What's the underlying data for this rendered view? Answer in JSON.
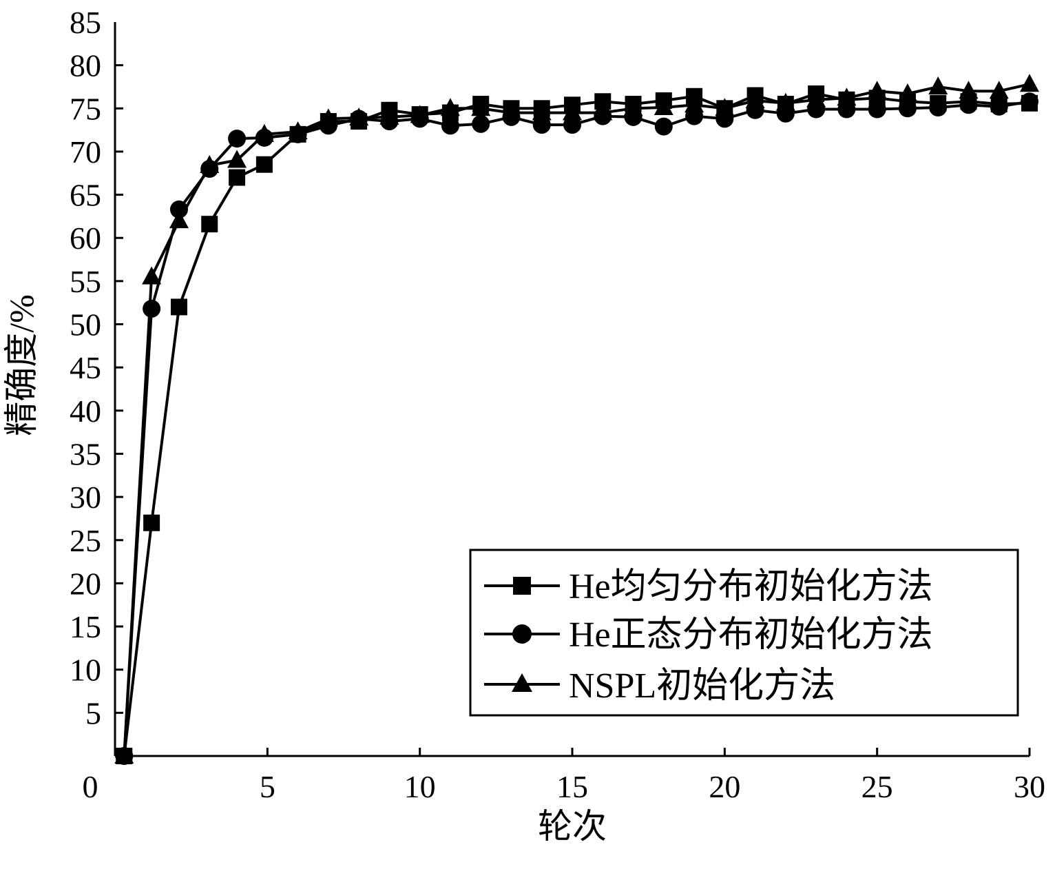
{
  "chart_data": {
    "type": "line",
    "xlabel": "轮次",
    "ylabel": "精确度/%",
    "xlim": [
      0,
      30
    ],
    "ylim": [
      0,
      85
    ],
    "xticks": [
      0,
      5,
      10,
      15,
      20,
      25,
      30
    ],
    "yticks": [
      5,
      10,
      15,
      20,
      25,
      30,
      35,
      40,
      45,
      50,
      55,
      60,
      65,
      70,
      75,
      80,
      85
    ],
    "grid": false,
    "legend_position": "bottom-right",
    "x": [
      0.3,
      1.2,
      2.1,
      3.1,
      4.0,
      4.9,
      6.0,
      7.0,
      8.0,
      9.0,
      10.0,
      11.0,
      12.0,
      13.0,
      14.0,
      15.0,
      16.0,
      17.0,
      18.0,
      19.0,
      20.0,
      21.0,
      22.0,
      23.0,
      24.0,
      25.0,
      26.0,
      27.0,
      28.0,
      29.0,
      30.0
    ],
    "series": [
      {
        "name": "He均匀分布初始化方法",
        "marker": "square",
        "values": [
          0,
          27,
          52,
          61.6,
          67,
          68.5,
          72,
          73.5,
          73.5,
          74.8,
          74.3,
          74.5,
          75.5,
          75,
          75,
          75.4,
          75.8,
          75.5,
          75.9,
          76.4,
          75,
          76.5,
          75.5,
          76.7,
          76,
          76.2,
          75.8,
          75.6,
          75.8,
          75.5,
          75.6
        ]
      },
      {
        "name": "He正态分布初始化方法",
        "marker": "circle",
        "values": [
          0,
          51.8,
          63.3,
          68,
          71.5,
          71.6,
          72,
          73,
          73.8,
          73.5,
          73.8,
          73,
          73.2,
          74,
          73.1,
          73.1,
          74.1,
          74,
          72.9,
          74.1,
          73.8,
          74.8,
          74.4,
          74.9,
          74.9,
          74.9,
          75,
          75.1,
          75.4,
          75.2,
          75.8
        ]
      },
      {
        "name": "NSPL初始化方法",
        "marker": "triangle",
        "values": [
          0,
          55.5,
          62,
          68.4,
          69,
          72,
          72.3,
          73.8,
          73.9,
          74,
          74.2,
          75,
          75,
          74.5,
          74.5,
          74.5,
          74.5,
          75,
          75.1,
          75.4,
          75,
          75.9,
          75.6,
          76,
          76.2,
          77,
          76.7,
          77.5,
          77,
          77,
          77.8
        ]
      }
    ]
  }
}
